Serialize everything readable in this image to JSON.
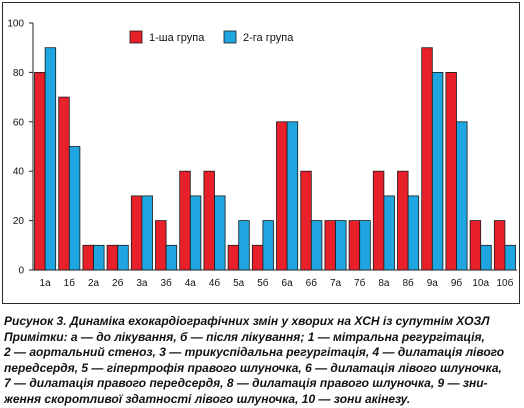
{
  "chart_data": {
    "type": "bar",
    "categories": [
      "1а",
      "1б",
      "2а",
      "2б",
      "3а",
      "3б",
      "4а",
      "4б",
      "5а",
      "5б",
      "6а",
      "6б",
      "7а",
      "7б",
      "8а",
      "8б",
      "9а",
      "9б",
      "10а",
      "10б"
    ],
    "series": [
      {
        "name": "1-ша група",
        "color": "#e8202a",
        "values": [
          80,
          70,
          10,
          10,
          30,
          20,
          40,
          40,
          10,
          10,
          60,
          40,
          20,
          20,
          40,
          40,
          90,
          80,
          20,
          20
        ]
      },
      {
        "name": "2-га група",
        "color": "#1fa6e0",
        "values": [
          90,
          50,
          10,
          10,
          30,
          10,
          30,
          30,
          20,
          20,
          60,
          20,
          20,
          20,
          30,
          30,
          80,
          60,
          10,
          10
        ]
      }
    ],
    "ylim": [
      0,
      100
    ],
    "yticks": [
      "0",
      "20",
      "40",
      "60",
      "80",
      "100"
    ],
    "legend_position": "top-right",
    "grid": false,
    "title": "",
    "xlabel": "",
    "ylabel": ""
  },
  "caption": {
    "lines": [
      "Рисунок 3. Динаміка ехокардіографічних змін у хворих на ХСН із супутнім ХОЗЛ",
      "Примітки: а — до лікування, б — після лікування; 1 — мітральна регургітація,",
      "2 — аортальний стеноз, 3 — трикуспідальна регургітація, 4 — дилатація лівого",
      "передсердя, 5 — гіпертрофія правого шлуночка, 6 — дилатація лівого шлуночка,",
      "7 — дилатація правого передсердя, 8 — дилатація правого шлуночка, 9 — зни-",
      "ження скоротливої здатності лівого шлуночка, 10 — зони акінезу."
    ]
  }
}
